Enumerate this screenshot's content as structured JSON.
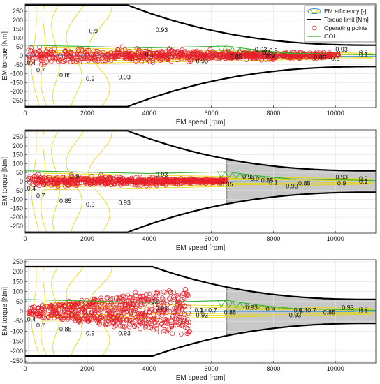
{
  "chart_data": [
    {
      "type": "scatter",
      "xlabel": "EM speed [rpm]",
      "ylabel": "EM torque [Nm]",
      "xlim": [
        0,
        11300
      ],
      "ylim": [
        -290,
        290
      ],
      "xticks": [
        0,
        2000,
        4000,
        6000,
        8000,
        10000
      ],
      "yticks": [
        250,
        200,
        150,
        100,
        50,
        0,
        -50,
        -100,
        -150,
        -200,
        -250
      ],
      "grid": true,
      "legend_position": "top-right",
      "legend": [
        "EM efficiency [-]",
        "Torque limit [Nm]",
        "Operating points",
        "OOL"
      ],
      "colors": {
        "torque_limit": "#000000",
        "operating_points": "#e8202a",
        "ool": "#38b22f",
        "efficiency_contours": "#e8e000",
        "low_efficiency_contour": "#2f8fd8",
        "shaded": "#c8c8c8"
      },
      "torque_limit": {
        "base_torque": 285,
        "base_speed": 3300,
        "max_speed": 11300,
        "torque_at_max_speed": 60
      },
      "shaded_region": null,
      "contour_labels": [
        {
          "text": "0.4",
          "x": 200,
          "y": -40
        },
        {
          "text": "0.7",
          "x": 500,
          "y": -80
        },
        {
          "text": "0.85",
          "x": 1300,
          "y": -110
        },
        {
          "text": "0.9",
          "x": 2100,
          "y": -130
        },
        {
          "text": "0.93",
          "x": 3200,
          "y": -120
        },
        {
          "text": "0.9",
          "x": 2200,
          "y": 140
        },
        {
          "text": "0.93",
          "x": 4400,
          "y": 145
        },
        {
          "text": "0.93",
          "x": 7600,
          "y": 35
        },
        {
          "text": "0.9",
          "x": 7900,
          "y": 0
        },
        {
          "text": "0.85",
          "x": 6800,
          "y": -5
        },
        {
          "text": "0.93",
          "x": 5700,
          "y": -30
        },
        {
          "text": "0.85",
          "x": 9500,
          "y": -10
        },
        {
          "text": "0.93",
          "x": 10200,
          "y": 35
        },
        {
          "text": "0.9",
          "x": 10000,
          "y": -15
        },
        {
          "text": "0.1",
          "x": 7800,
          "y": 15
        },
        {
          "text": "0.1",
          "x": 10900,
          "y": 5
        },
        {
          "text": "0.9",
          "x": 10900,
          "y": 20
        },
        {
          "text": "0.9",
          "x": 8000,
          "y": 30
        },
        {
          "text": "0.1",
          "x": 4000,
          "y": 10
        }
      ],
      "point_clusters": [
        {
          "x_range": [
            100,
            10100
          ],
          "y_band": 60,
          "density": "high"
        }
      ],
      "ool_profile": [
        [
          0,
          60
        ],
        [
          4000,
          45
        ],
        [
          6500,
          55
        ],
        [
          7600,
          30
        ],
        [
          8600,
          15
        ],
        [
          11300,
          5
        ]
      ]
    },
    {
      "type": "scatter",
      "xlabel": "EM speed [rpm]",
      "ylabel": "EM torque [Nm]",
      "xlim": [
        0,
        11300
      ],
      "ylim": [
        -290,
        290
      ],
      "xticks": [
        0,
        2000,
        4000,
        6000,
        8000,
        10000
      ],
      "yticks": [
        250,
        200,
        150,
        100,
        50,
        0,
        -50,
        -100,
        -150,
        -200,
        -250
      ],
      "grid": true,
      "torque_limit": {
        "base_torque": 285,
        "base_speed": 3300,
        "max_speed": 11300,
        "torque_at_max_speed": 60
      },
      "shaded_region": {
        "x_from": 6500,
        "x_to": 11300
      },
      "contour_labels": [
        {
          "text": "0.4",
          "x": 200,
          "y": -40
        },
        {
          "text": "0.7",
          "x": 500,
          "y": -80
        },
        {
          "text": "0.85",
          "x": 1300,
          "y": -110
        },
        {
          "text": "0.9",
          "x": 2100,
          "y": -130
        },
        {
          "text": "0.93",
          "x": 3200,
          "y": -120
        },
        {
          "text": "0.9",
          "x": 1600,
          "y": 30
        },
        {
          "text": "0.93",
          "x": 4400,
          "y": 40
        },
        {
          "text": "0.35",
          "x": 6500,
          "y": -15
        },
        {
          "text": "0.93",
          "x": 7200,
          "y": 25
        },
        {
          "text": "0.9",
          "x": 7400,
          "y": 15
        },
        {
          "text": "0.85",
          "x": 7800,
          "y": 5
        },
        {
          "text": "0.1",
          "x": 8000,
          "y": -5
        },
        {
          "text": "0.93",
          "x": 8600,
          "y": -25
        },
        {
          "text": "0.85",
          "x": 9000,
          "y": -10
        },
        {
          "text": "0.93",
          "x": 10200,
          "y": 25
        },
        {
          "text": "0.9",
          "x": 10200,
          "y": -10
        },
        {
          "text": "0.9",
          "x": 10900,
          "y": 15
        },
        {
          "text": "0.1",
          "x": 10900,
          "y": 0
        }
      ],
      "point_clusters": [
        {
          "x_range": [
            100,
            6500
          ],
          "y_band": 45,
          "density": "high"
        }
      ],
      "ool_profile": [
        [
          0,
          60
        ],
        [
          4000,
          45
        ],
        [
          6500,
          55
        ],
        [
          7600,
          30
        ],
        [
          8600,
          15
        ],
        [
          11300,
          5
        ]
      ]
    },
    {
      "type": "scatter",
      "xlabel": "EM speed [rpm]",
      "ylabel": "EM torque [Nm]",
      "xlim": [
        0,
        11300
      ],
      "ylim": [
        -260,
        260
      ],
      "xticks": [
        0,
        2000,
        4000,
        6000,
        8000,
        10000
      ],
      "yticks": [
        250,
        200,
        150,
        100,
        50,
        0,
        -50,
        -100,
        -150,
        -200,
        -250
      ],
      "grid": true,
      "torque_limit": {
        "base_torque": 225,
        "base_speed": 4100,
        "max_speed": 11300,
        "torque_at_max_speed": 60
      },
      "shaded_region": {
        "x_from": 6500,
        "x_to": 11300
      },
      "contour_labels": [
        {
          "text": "0.4",
          "x": 200,
          "y": -40
        },
        {
          "text": "0.7",
          "x": 500,
          "y": -70
        },
        {
          "text": "0.85",
          "x": 1300,
          "y": -90
        },
        {
          "text": "0.9",
          "x": 2100,
          "y": -110
        },
        {
          "text": "0.93",
          "x": 3200,
          "y": -110
        },
        {
          "text": "0.9",
          "x": 4200,
          "y": 50
        },
        {
          "text": "0.93",
          "x": 4400,
          "y": 15
        },
        {
          "text": "0.1",
          "x": 5600,
          "y": 5
        },
        {
          "text": "0.40.7",
          "x": 5900,
          "y": 5
        },
        {
          "text": "0.85",
          "x": 6600,
          "y": -5
        },
        {
          "text": "0.93",
          "x": 5700,
          "y": -20
        },
        {
          "text": "0.93",
          "x": 7300,
          "y": 20
        },
        {
          "text": "0.9",
          "x": 7900,
          "y": 10
        },
        {
          "text": "0.1",
          "x": 8800,
          "y": 5
        },
        {
          "text": "0.40.7",
          "x": 9100,
          "y": 5
        },
        {
          "text": "0.93",
          "x": 8700,
          "y": -20
        },
        {
          "text": "0.85",
          "x": 9800,
          "y": -5
        },
        {
          "text": "0.93",
          "x": 10400,
          "y": 20
        },
        {
          "text": "0.9",
          "x": 10900,
          "y": 10
        },
        {
          "text": "0.1",
          "x": 10900,
          "y": 0
        }
      ],
      "point_clusters": [
        {
          "x_range": [
            100,
            5300
          ],
          "y_band": 100,
          "density": "high",
          "shape": "fan"
        }
      ],
      "ool_profile": [
        [
          0,
          60
        ],
        [
          4000,
          45
        ],
        [
          6500,
          55
        ],
        [
          7600,
          30
        ],
        [
          8600,
          15
        ],
        [
          11300,
          5
        ]
      ]
    }
  ]
}
